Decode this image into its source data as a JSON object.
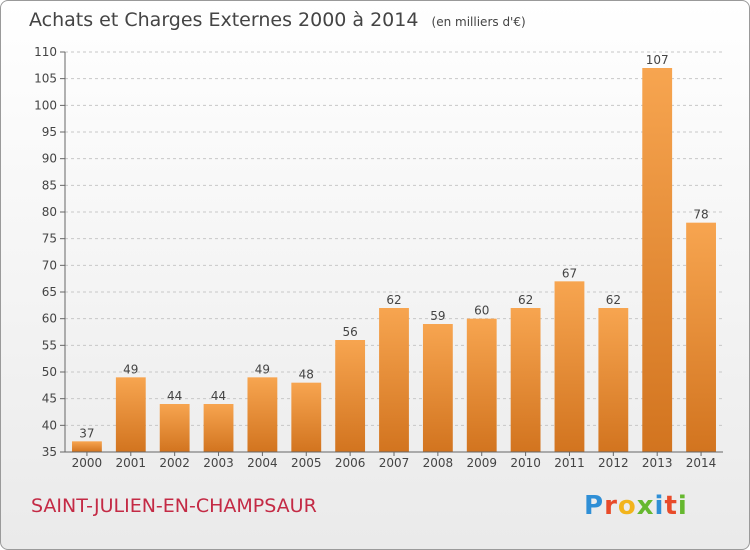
{
  "header": {
    "title": "Achats et Charges Externes 2000 à 2014",
    "subtitle": "(en milliers d'€)"
  },
  "footer": {
    "town": "SAINT-JULIEN-EN-CHAMPSAUR",
    "brand_letters": [
      "P",
      "r",
      "o",
      "x",
      "i",
      "t",
      "i"
    ],
    "brand_colors": [
      "#2f8fd6",
      "#e84b2a",
      "#f2b41c",
      "#66b82f",
      "#2f8fd6",
      "#e84b2a",
      "#66b82f"
    ]
  },
  "chart_data": {
    "type": "bar",
    "categories": [
      "2000",
      "2001",
      "2002",
      "2003",
      "2004",
      "2005",
      "2006",
      "2007",
      "2008",
      "2009",
      "2010",
      "2011",
      "2012",
      "2013",
      "2014"
    ],
    "values": [
      37,
      49,
      44,
      44,
      49,
      48,
      56,
      62,
      59,
      60,
      62,
      67,
      62,
      107,
      78
    ],
    "title": "Achats et Charges Externes 2000 à 2014",
    "xlabel": "",
    "ylabel": "",
    "ylim": [
      35,
      110
    ],
    "yticks": [
      35,
      40,
      45,
      50,
      55,
      60,
      65,
      70,
      75,
      80,
      85,
      90,
      95,
      100,
      105,
      110
    ],
    "grid": "horizontal-dashed",
    "bar_color_light": "#f7a550",
    "bar_color_dark": "#d2741f"
  }
}
